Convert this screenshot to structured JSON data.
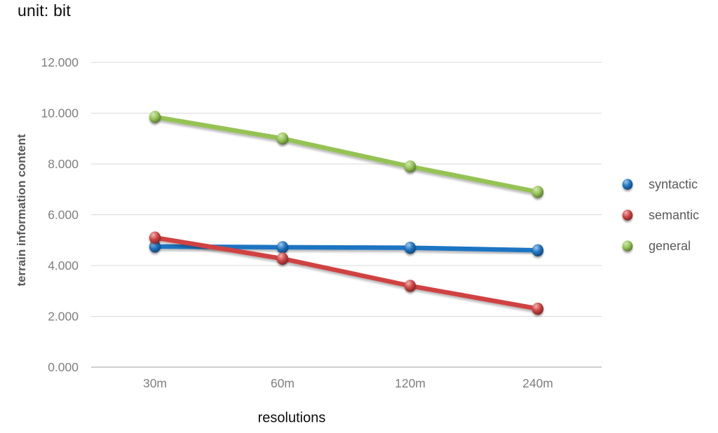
{
  "chart_data": {
    "type": "line",
    "title": "unit: bit",
    "xlabel": "resolutions",
    "ylabel": "terrain information content",
    "categories": [
      "30m",
      "60m",
      "120m",
      "240m"
    ],
    "series": [
      {
        "name": "syntactic",
        "color": "#1E74C2",
        "values": [
          4.75,
          4.72,
          4.7,
          4.6
        ]
      },
      {
        "name": "semantic",
        "color": "#D04242",
        "values": [
          5.1,
          4.27,
          3.2,
          2.3
        ]
      },
      {
        "name": "general",
        "color": "#94C353",
        "values": [
          9.85,
          9.0,
          7.9,
          6.9
        ]
      }
    ],
    "ylim": [
      0,
      12
    ],
    "ytick_step": 2,
    "ytick_labels": [
      "0.000",
      "2.000",
      "4.000",
      "6.000",
      "8.000",
      "10.000",
      "12.000"
    ],
    "grid": true,
    "legend_position": "right",
    "colors": {
      "grid": "#D9D9D9",
      "axis_line": "#BFBFBF",
      "tick_text": "#7F7F7F",
      "axis_title_text": "#595959",
      "title_text": "#0D0D0D"
    }
  }
}
